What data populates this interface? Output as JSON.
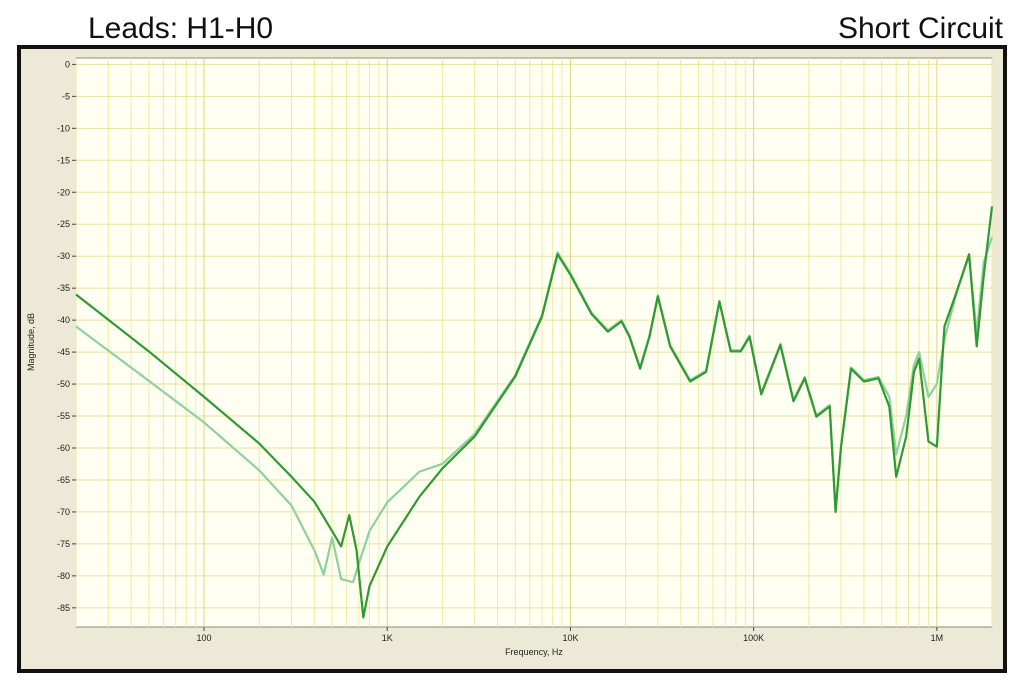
{
  "chart_data": {
    "type": "line",
    "title": "Leads: H1-H0",
    "subtitle": "Short Circuit",
    "x_label": "Frequency, Hz",
    "y_label": "Magnitude, dB",
    "log_x": true,
    "grid": true,
    "xlim": [
      20,
      2000000
    ],
    "ylim": [
      -88,
      1
    ],
    "xticks": [
      100,
      {
        "value": 1000,
        "label": "1K"
      },
      {
        "value": 10000,
        "label": "10K"
      },
      {
        "value": 100000,
        "label": "100K"
      },
      {
        "value": 1000000,
        "label": "1M"
      }
    ],
    "x_minor_grid": [
      20,
      30,
      40,
      50,
      60,
      70,
      80,
      90,
      200,
      300,
      400,
      500,
      600,
      700,
      800,
      900,
      2000,
      3000,
      4000,
      5000,
      6000,
      7000,
      8000,
      9000,
      20000,
      30000,
      40000,
      50000,
      60000,
      70000,
      80000,
      90000,
      200000,
      300000,
      400000,
      500000,
      600000,
      700000,
      800000,
      900000,
      2000000
    ],
    "yticks": [
      0,
      -5,
      -10,
      -15,
      -20,
      -25,
      -30,
      -35,
      -40,
      -45,
      -50,
      -55,
      -60,
      -65,
      -70,
      -75,
      -80,
      -85
    ],
    "series": [
      {
        "color": "#8fd09c",
        "x": [
          20,
          50,
          100,
          200,
          300,
          400,
          450,
          500,
          560,
          650,
          720,
          800,
          1000,
          1500,
          2000,
          3000,
          5000,
          7000,
          8500,
          10000,
          13000,
          16000,
          19000,
          21000,
          24000,
          27000,
          30000,
          35000,
          45000,
          55000,
          65000,
          75000,
          85000,
          95000,
          110000,
          140000,
          165000,
          190000,
          220000,
          260000,
          280000,
          300000,
          340000,
          400000,
          480000,
          550000,
          600000,
          680000,
          750000,
          800000,
          900000,
          1000000,
          1100000,
          1300000,
          1500000,
          1650000,
          1800000,
          2000000
        ],
        "values": [
          -41,
          -49.5,
          -56,
          -63.5,
          -69,
          -76,
          -79.8,
          -74,
          -80.5,
          -81,
          -77,
          -73,
          -68.5,
          -63.7,
          -62.5,
          -57.8,
          -48.6,
          -39.2,
          -29.4,
          -32.7,
          -38.8,
          -41.6,
          -40,
          -42.4,
          -47.4,
          -42.4,
          -36.1,
          -43.9,
          -49.4,
          -47.9,
          -37,
          -44.7,
          -44.7,
          -42.4,
          -51.4,
          -43.7,
          -52.5,
          -48.9,
          -54.9,
          -53.3,
          -69.5,
          -59.6,
          -47.4,
          -49.4,
          -48.9,
          -52,
          -61,
          -55,
          -47,
          -45,
          -52,
          -50,
          -43,
          -35,
          -30,
          -42,
          -31,
          -27
        ]
      },
      {
        "color": "#2f9a32",
        "x": [
          20,
          50,
          100,
          200,
          300,
          400,
          500,
          560,
          620,
          680,
          740,
          800,
          1000,
          1500,
          2000,
          3000,
          5000,
          7000,
          8500,
          10000,
          13000,
          16000,
          19000,
          21000,
          24000,
          27000,
          30000,
          35000,
          45000,
          55000,
          65000,
          75000,
          85000,
          95000,
          110000,
          140000,
          165000,
          190000,
          220000,
          260000,
          280000,
          300000,
          340000,
          400000,
          480000,
          550000,
          600000,
          680000,
          750000,
          800000,
          900000,
          1000000,
          1100000,
          1300000,
          1500000,
          1650000,
          1800000,
          2000000
        ],
        "values": [
          -36,
          -44.9,
          -52,
          -59.3,
          -64.5,
          -68.4,
          -73,
          -75.4,
          -70.5,
          -76,
          -86.5,
          -81.6,
          -75.4,
          -67.6,
          -63.2,
          -58.2,
          -48.8,
          -39.4,
          -29.7,
          -32.9,
          -39,
          -41.8,
          -40.2,
          -42.6,
          -47.6,
          -42.6,
          -36.3,
          -44.1,
          -49.6,
          -48.1,
          -37.1,
          -44.9,
          -44.9,
          -42.6,
          -51.6,
          -43.9,
          -52.7,
          -49.1,
          -55.1,
          -53.5,
          -70,
          -59.8,
          -47.6,
          -49.6,
          -49.1,
          -53.5,
          -64.5,
          -58.2,
          -48.1,
          -46,
          -59,
          -59.8,
          -41,
          -35.1,
          -29.7,
          -44.1,
          -33.2,
          -22.2
        ]
      }
    ]
  }
}
